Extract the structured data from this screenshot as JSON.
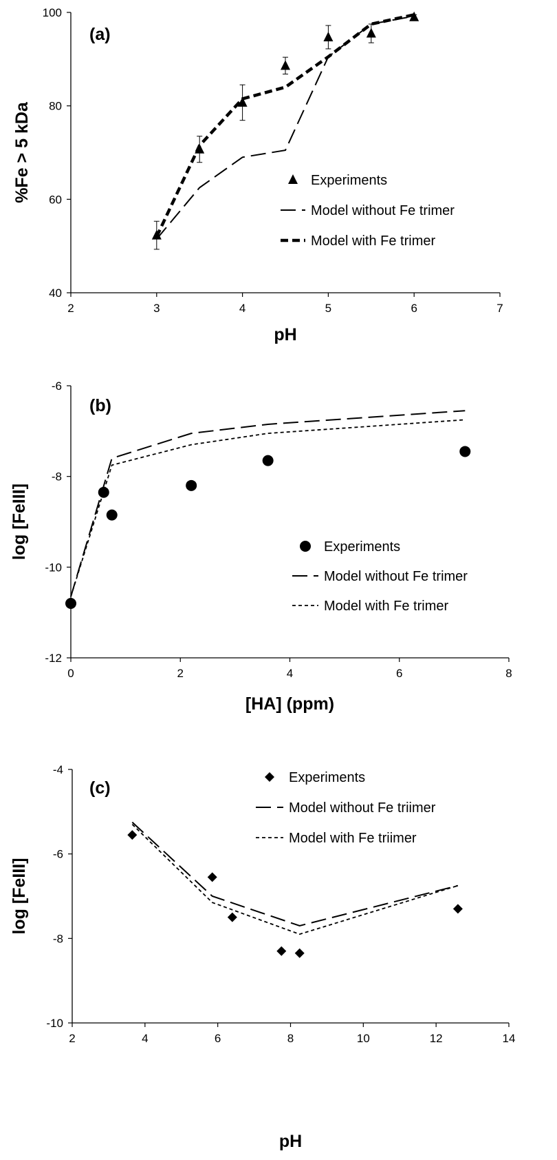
{
  "chart_data": [
    {
      "type": "scatter",
      "panel_label": "(a)",
      "xlabel": "pH",
      "ylabel": "%Fe > 5 kDa",
      "xlim": [
        2,
        7
      ],
      "ylim": [
        40,
        100
      ],
      "xticks": [
        "2",
        "3",
        "4",
        "5",
        "6",
        "7"
      ],
      "yticks": [
        "40",
        "60",
        "80",
        "100"
      ],
      "grid": false,
      "legend_position": "center-right",
      "series": [
        {
          "name": "Experiments",
          "kind": "marker",
          "marker": "triangle",
          "x": [
            3,
            3.5,
            4,
            4.5,
            5,
            5.5,
            6
          ],
          "y": [
            52.3,
            70.7,
            80.7,
            88.6,
            94.7,
            95.5,
            99.0
          ],
          "err": [
            3,
            2.8,
            3.8,
            1.8,
            2.5,
            2.0,
            0.5
          ]
        },
        {
          "name": "Model without Fe trimer",
          "kind": "line",
          "dash": "long",
          "x": [
            3,
            3.5,
            4,
            4.5,
            5,
            5.5,
            6
          ],
          "y": [
            51.5,
            62.5,
            69.0,
            70.5,
            90.5,
            97.5,
            99.2
          ]
        },
        {
          "name": "Model with Fe trimer",
          "kind": "line",
          "dash": "bold",
          "x": [
            3,
            3.5,
            4,
            4.5,
            5,
            5.5,
            6
          ],
          "y": [
            52.0,
            71.5,
            81.5,
            84.0,
            90.5,
            97.5,
            99.5
          ]
        }
      ]
    },
    {
      "type": "scatter",
      "panel_label": "(b)",
      "xlabel": "[HA] (ppm)",
      "ylabel": "log [FeIII]",
      "xlim": [
        0,
        8
      ],
      "ylim": [
        -12,
        -6
      ],
      "xticks": [
        "0",
        "2",
        "4",
        "6",
        "8"
      ],
      "yticks": [
        "-12",
        "-10",
        "-8",
        "-6"
      ],
      "grid": false,
      "legend_position": "center-right",
      "series": [
        {
          "name": "Experiments",
          "kind": "marker",
          "marker": "circle",
          "x": [
            0,
            0.6,
            0.75,
            2.2,
            3.6,
            7.2
          ],
          "y": [
            -10.8,
            -8.35,
            -8.85,
            -8.2,
            -7.65,
            -7.45
          ]
        },
        {
          "name": "Model without Fe trimer",
          "kind": "line",
          "dash": "long",
          "x": [
            0,
            0.75,
            2.2,
            3.6,
            7.2
          ],
          "y": [
            -10.65,
            -7.6,
            -7.05,
            -6.85,
            -6.55
          ]
        },
        {
          "name": "Model with Fe trimer",
          "kind": "line",
          "dash": "short",
          "x": [
            0,
            0.75,
            2.2,
            3.6,
            7.2
          ],
          "y": [
            -10.65,
            -7.75,
            -7.3,
            -7.05,
            -6.75
          ]
        }
      ]
    },
    {
      "type": "scatter",
      "panel_label": "(c)",
      "xlabel": "pH",
      "ylabel": "log [FeIII]",
      "xlim": [
        2,
        14
      ],
      "ylim": [
        -10,
        -4
      ],
      "xticks": [
        "2",
        "4",
        "6",
        "8",
        "10",
        "12",
        "14"
      ],
      "yticks": [
        "-10",
        "-8",
        "-6",
        "-4"
      ],
      "grid": false,
      "legend_position": "top-right",
      "series": [
        {
          "name": "Experiments",
          "kind": "marker",
          "marker": "diamond",
          "x": [
            3.65,
            5.85,
            6.4,
            7.75,
            8.25,
            12.6
          ],
          "y": [
            -5.55,
            -6.55,
            -7.5,
            -8.3,
            -8.35,
            -7.3
          ]
        },
        {
          "name": "Model without Fe triimer",
          "kind": "line",
          "dash": "long",
          "x": [
            3.65,
            5.85,
            8.25,
            12.6
          ],
          "y": [
            -5.25,
            -7.0,
            -7.7,
            -6.75
          ]
        },
        {
          "name": "Model with Fe triimer",
          "kind": "line",
          "dash": "short",
          "x": [
            3.65,
            5.85,
            8.25,
            12.6
          ],
          "y": [
            -5.3,
            -7.15,
            -7.9,
            -6.75
          ]
        }
      ]
    }
  ]
}
